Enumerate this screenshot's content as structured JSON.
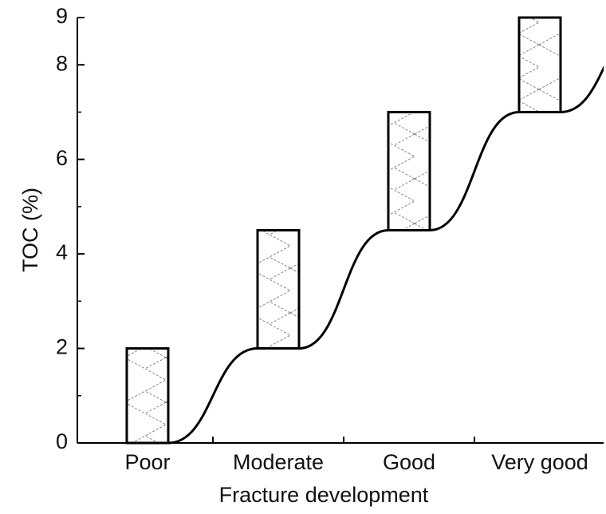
{
  "chart_data": {
    "type": "floating-bar",
    "categories": [
      "Poor",
      "Moderate",
      "Good",
      "Very good"
    ],
    "low": [
      0,
      2,
      4.5,
      7
    ],
    "high": [
      2,
      4.5,
      7,
      9
    ],
    "xlabel": "Fracture development",
    "ylabel": "TOC (%)",
    "ylim": [
      0,
      9
    ],
    "yticks": [
      0,
      2,
      4,
      6,
      8,
      9
    ],
    "yminorticks": [
      1,
      3,
      5,
      7
    ],
    "color": "#000000",
    "hatch": true,
    "grid": false
  }
}
